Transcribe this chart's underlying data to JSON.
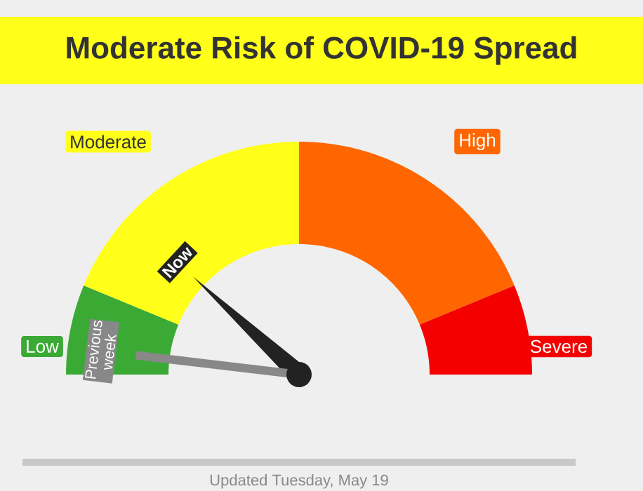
{
  "chart_data": {
    "type": "donut",
    "title": "Moderate Risk of COVID-19 Spread",
    "categories": [
      "Low",
      "Moderate",
      "High",
      "Severe"
    ],
    "values": [
      12.5,
      37.5,
      37.5,
      12.5
    ],
    "colors": [
      "#3aaa35",
      "#ffff1a",
      "#ff6600",
      "#f40000"
    ],
    "needle": "Moderate",
    "annotations": [
      {
        "text": "Now",
        "x": "Moderate"
      },
      {
        "text": "Previous week",
        "x": "Low"
      },
      "Updated Tuesday, May 19"
    ]
  }
}
